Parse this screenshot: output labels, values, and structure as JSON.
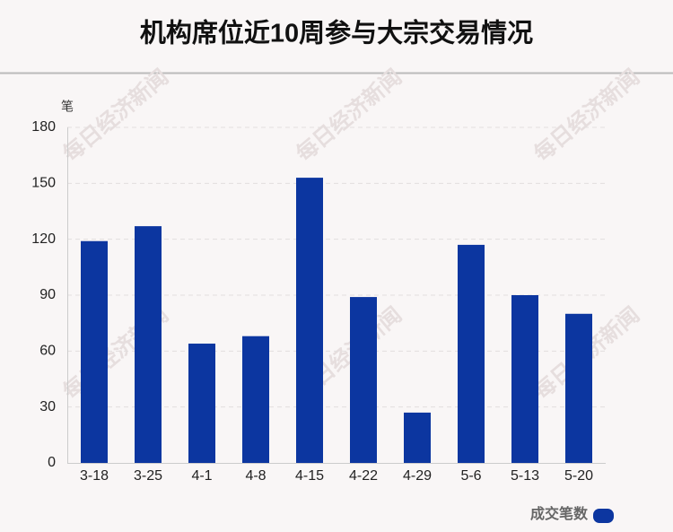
{
  "chart_data": {
    "type": "bar",
    "title": "机构席位近10周参与大宗交易情况",
    "y_unit": "笔",
    "categories": [
      "3-18",
      "3-25",
      "4-1",
      "4-8",
      "4-15",
      "4-22",
      "4-29",
      "5-6",
      "5-13",
      "5-20"
    ],
    "series": [
      {
        "name": "成交笔数",
        "color": "#0c36a0",
        "values": [
          119,
          127,
          64,
          68,
          153,
          89,
          27,
          117,
          90,
          80
        ]
      }
    ],
    "ylim": [
      0,
      180
    ],
    "yticks": [
      0,
      30,
      60,
      90,
      120,
      150,
      180
    ],
    "grid": true,
    "legend": "bottom-right",
    "watermark": "每日经济新闻"
  }
}
